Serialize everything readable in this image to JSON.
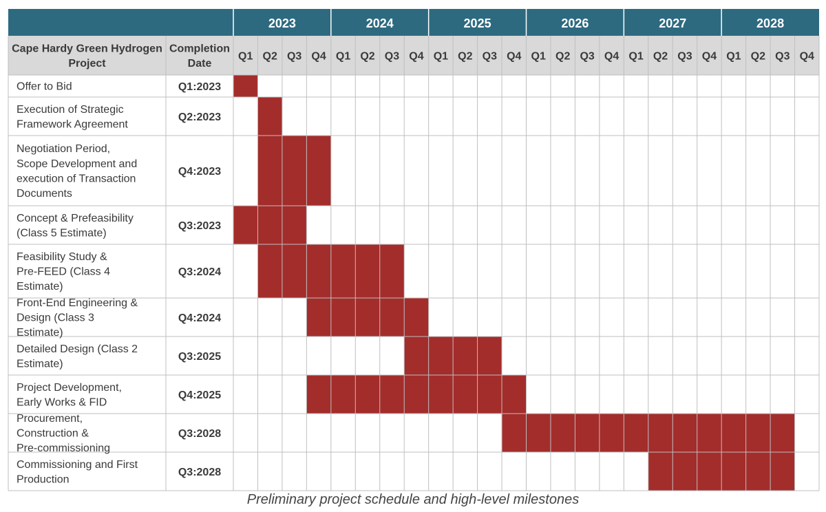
{
  "colors": {
    "header_band": "#2d6a80",
    "subheader_bg": "#d9d9d9",
    "bar": "#a32d2b",
    "grid": "#bfbfbf",
    "text": "#3a3a3a"
  },
  "chart_data": {
    "type": "gantt",
    "column_headers": {
      "project": "Cape Hardy Green Hydrogen Project",
      "completion": "Completion Date"
    },
    "years": [
      "2023",
      "2024",
      "2025",
      "2026",
      "2027",
      "2028"
    ],
    "quarters": [
      "Q1",
      "Q2",
      "Q3",
      "Q4"
    ],
    "tasks": [
      {
        "name": "Offer to Bid",
        "completion": "Q1:2023",
        "start": "Q1 2023",
        "end": "Q1 2023"
      },
      {
        "name": "Execution of Strategic Framework Agreement",
        "completion": "Q2:2023",
        "start": "Q2 2023",
        "end": "Q2 2023"
      },
      {
        "name": "Negotiation Period, Scope Development and execution of Transaction Documents",
        "completion": "Q4:2023",
        "start": "Q2 2023",
        "end": "Q4 2023"
      },
      {
        "name": "Concept & Prefeasibility (Class 5 Estimate)",
        "completion": "Q3:2023",
        "start": "Q1 2023",
        "end": "Q3 2023"
      },
      {
        "name": "Feasibility Study & Pre-FEED (Class 4 Estimate)",
        "completion": "Q3:2024",
        "start": "Q2 2023",
        "end": "Q3 2024"
      },
      {
        "name": "Front-End Engineering & Design (Class 3 Estimate)",
        "completion": "Q4:2024",
        "start": "Q4 2023",
        "end": "Q4 2024"
      },
      {
        "name": "Detailed Design (Class 2 Estimate)",
        "completion": "Q3:2025",
        "start": "Q4 2024",
        "end": "Q3 2025"
      },
      {
        "name": "Project Development, Early Works & FID",
        "completion": "Q4:2025",
        "start": "Q4 2023",
        "end": "Q4 2025"
      },
      {
        "name": "Procurement, Construction & Pre-commissioning",
        "completion": "Q3:2028",
        "start": "Q4 2025",
        "end": "Q3 2028"
      },
      {
        "name": "Commissioning and First Production",
        "completion": "Q3:2028",
        "start": "Q2 2027",
        "end": "Q3 2028"
      }
    ],
    "caption": "Preliminary project schedule and high-level milestones"
  }
}
